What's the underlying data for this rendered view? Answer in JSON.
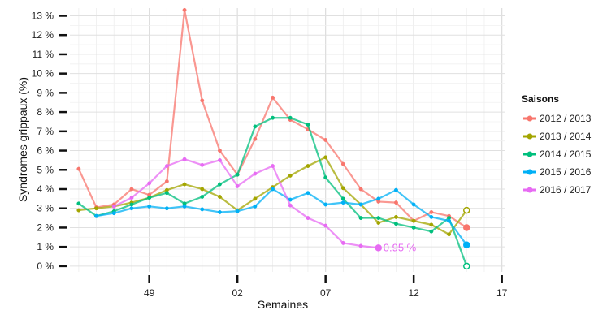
{
  "chart_data": {
    "type": "line",
    "xlabel": "Semaines",
    "ylabel": "Syndromes grippaux (%)",
    "x_ticks": [
      "49",
      "02",
      "07",
      "12",
      "17"
    ],
    "y_ticks": [
      "0 %",
      "1 %",
      "2 %",
      "3 %",
      "4 %",
      "5 %",
      "6 %",
      "7 %",
      "8 %",
      "9 %",
      "10 %",
      "11 %",
      "12 %",
      "13 %"
    ],
    "x_tick_positions": [
      49,
      54,
      59,
      64,
      69
    ],
    "x_range": [
      44.5,
      69.2
    ],
    "ylim": [
      -0.3,
      13.4
    ],
    "grid": true,
    "legend": {
      "title": "Saisons",
      "placement": "right"
    },
    "x": [
      45,
      46,
      47,
      48,
      49,
      50,
      51,
      52,
      53,
      54,
      55,
      56,
      57,
      58,
      59,
      60,
      61,
      62,
      63,
      64,
      65,
      66,
      67,
      68
    ],
    "series": [
      {
        "name": "2012 / 2013",
        "color": "#f8766d",
        "values": [
          5.05,
          3.05,
          3.2,
          4.0,
          3.7,
          4.4,
          13.3,
          8.6,
          6.0,
          4.75,
          6.6,
          8.75,
          7.6,
          7.1,
          6.55,
          5.3,
          4.0,
          3.35,
          3.3,
          2.35,
          2.8,
          2.6,
          2.0,
          null
        ]
      },
      {
        "name": "2013 / 2014",
        "color": "#a3a500",
        "values": [
          2.9,
          3.0,
          3.1,
          3.3,
          3.55,
          3.95,
          4.25,
          4.0,
          3.6,
          2.9,
          3.5,
          4.1,
          4.7,
          5.2,
          5.65,
          4.05,
          3.2,
          2.25,
          2.55,
          2.35,
          2.15,
          1.65,
          2.9,
          null
        ]
      },
      {
        "name": "2014 / 2015",
        "color": "#00bf7d",
        "values": [
          3.25,
          2.6,
          2.85,
          3.2,
          3.55,
          3.8,
          3.25,
          3.6,
          4.25,
          4.75,
          7.25,
          7.7,
          7.7,
          7.35,
          4.6,
          3.5,
          2.5,
          2.5,
          2.2,
          2.0,
          1.8,
          2.5,
          0.0,
          null
        ]
      },
      {
        "name": "2015 / 2016",
        "color": "#00b0f6",
        "values": [
          null,
          2.6,
          2.75,
          3.0,
          3.1,
          3.0,
          3.1,
          2.95,
          2.8,
          2.85,
          3.1,
          4.0,
          3.45,
          3.8,
          3.2,
          3.3,
          3.2,
          3.5,
          3.95,
          3.2,
          2.55,
          2.35,
          1.1,
          null
        ]
      },
      {
        "name": "2016 / 2017",
        "color": "#e76bf3",
        "values": [
          null,
          null,
          3.1,
          3.55,
          4.3,
          5.2,
          5.55,
          5.25,
          5.5,
          4.15,
          4.8,
          5.2,
          3.15,
          2.5,
          2.1,
          1.2,
          1.05,
          0.95,
          null,
          null,
          null,
          null,
          null,
          null
        ]
      }
    ],
    "annotations": [
      {
        "text": "0.95 %",
        "series": "2016 / 2017",
        "x": 62,
        "y": 0.95
      }
    ]
  }
}
